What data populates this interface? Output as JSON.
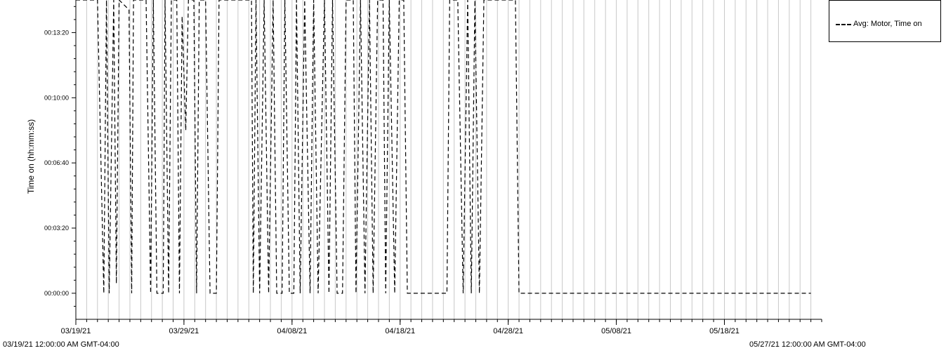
{
  "chart_data": {
    "type": "line",
    "ylabel": "Time on (hh:mm:ss)",
    "y_tick_labels": [
      "00:00:00",
      "00:03:20",
      "00:06:40",
      "00:10:00",
      "00:13:20"
    ],
    "y_tick_values": [
      0,
      200,
      400,
      600,
      800
    ],
    "ylim": [
      -80,
      900
    ],
    "x_tick_labels": [
      "03/19/21",
      "03/29/21",
      "04/08/21",
      "04/18/21",
      "04/28/21",
      "05/08/21",
      "05/18/21"
    ],
    "x_tick_values": [
      "2021-03-19",
      "2021-03-29",
      "2021-04-08",
      "2021-04-18",
      "2021-04-28",
      "2021-05-08",
      "2021-05-18"
    ],
    "xlim": [
      "2021-03-19",
      "2021-05-27"
    ],
    "range_start_label": "03/19/21 12:00:00 AM GMT-04:00",
    "range_end_label": "05/27/21 12:00:00 AM GMT-04:00",
    "grid": "vertical",
    "legend_position": "top-right",
    "series": [
      {
        "name": "Avg: Motor, Time on",
        "style": "dashed",
        "color": "#000000",
        "points": [
          [
            "2021-03-19",
            900
          ],
          [
            "2021-03-21",
            900
          ],
          [
            "2021-03-21 14:00",
            0
          ],
          [
            "2021-03-21 20:00",
            900
          ],
          [
            "2021-03-22 02:00",
            0
          ],
          [
            "2021-03-22 12:00",
            900
          ],
          [
            "2021-03-22 18:00",
            30
          ],
          [
            "2021-03-23",
            900
          ],
          [
            "2021-03-23 22:00",
            870
          ],
          [
            "2021-03-24 04:00",
            0
          ],
          [
            "2021-03-24 08:00",
            900
          ],
          [
            "2021-03-25 12:00",
            900
          ],
          [
            "2021-03-25 22:00",
            0
          ],
          [
            "2021-03-26 04:00",
            900
          ],
          [
            "2021-03-26 12:00",
            0
          ],
          [
            "2021-03-27 02:00",
            0
          ],
          [
            "2021-03-27 06:00",
            900
          ],
          [
            "2021-03-27 14:00",
            0
          ],
          [
            "2021-03-27 20:00",
            900
          ],
          [
            "2021-03-28 08:00",
            900
          ],
          [
            "2021-03-28 14:00",
            0
          ],
          [
            "2021-03-28 20:00",
            850
          ],
          [
            "2021-03-29 04:00",
            500
          ],
          [
            "2021-03-29 10:00",
            900
          ],
          [
            "2021-03-29 22:00",
            900
          ],
          [
            "2021-03-30 04:00",
            0
          ],
          [
            "2021-03-30 10:00",
            900
          ],
          [
            "2021-03-31",
            900
          ],
          [
            "2021-03-31 10:00",
            0
          ],
          [
            "2021-04-01",
            0
          ],
          [
            "2021-04-01 06:00",
            900
          ],
          [
            "2021-04-02 06:00",
            900
          ],
          [
            "2021-04-02 14:00",
            900
          ],
          [
            "2021-04-03 12:00",
            900
          ],
          [
            "2021-04-04 06:00",
            900
          ],
          [
            "2021-04-04 10:00",
            0
          ],
          [
            "2021-04-04 16:00",
            900
          ],
          [
            "2021-04-05",
            0
          ],
          [
            "2021-04-05 10:00",
            900
          ],
          [
            "2021-04-05 20:00",
            0
          ],
          [
            "2021-04-06 06:00",
            900
          ],
          [
            "2021-04-06 14:00",
            0
          ],
          [
            "2021-04-07 02:00",
            0
          ],
          [
            "2021-04-07 08:00",
            900
          ],
          [
            "2021-04-07 18:00",
            0
          ],
          [
            "2021-04-08 04:00",
            0
          ],
          [
            "2021-04-08 10:00",
            900
          ],
          [
            "2021-04-08 18:00",
            0
          ],
          [
            "2021-04-09 04:00",
            900
          ],
          [
            "2021-04-09 16:00",
            0
          ],
          [
            "2021-04-10",
            900
          ],
          [
            "2021-04-10 10:00",
            0
          ],
          [
            "2021-04-11",
            900
          ],
          [
            "2021-04-11 10:00",
            0
          ],
          [
            "2021-04-11 18:00",
            900
          ],
          [
            "2021-04-12 04:00",
            0
          ],
          [
            "2021-04-12 16:00",
            0
          ],
          [
            "2021-04-13",
            900
          ],
          [
            "2021-04-13 16:00",
            900
          ],
          [
            "2021-04-13 22:00",
            0
          ],
          [
            "2021-04-14 08:00",
            900
          ],
          [
            "2021-04-14 18:00",
            0
          ],
          [
            "2021-04-15 04:00",
            900
          ],
          [
            "2021-04-15 12:00",
            0
          ],
          [
            "2021-04-15 22:00",
            900
          ],
          [
            "2021-04-16 10:00",
            900
          ],
          [
            "2021-04-16 16:00",
            0
          ],
          [
            "2021-04-17",
            900
          ],
          [
            "2021-04-17 12:00",
            0
          ],
          [
            "2021-04-17 22:00",
            900
          ],
          [
            "2021-04-18 08:00",
            900
          ],
          [
            "2021-04-18 16:00",
            0
          ],
          [
            "2021-04-22 08:00",
            0
          ],
          [
            "2021-04-22 14:00",
            900
          ],
          [
            "2021-04-23 08:00",
            900
          ],
          [
            "2021-04-23 20:00",
            0
          ],
          [
            "2021-04-24 06:00",
            900
          ],
          [
            "2021-04-24 14:00",
            0
          ],
          [
            "2021-04-24 22:00",
            900
          ],
          [
            "2021-04-25 08:00",
            0
          ],
          [
            "2021-04-25 18:00",
            900
          ],
          [
            "2021-04-28 16:00",
            900
          ],
          [
            "2021-04-29",
            0
          ],
          [
            "2021-05-26",
            0
          ]
        ]
      }
    ]
  }
}
